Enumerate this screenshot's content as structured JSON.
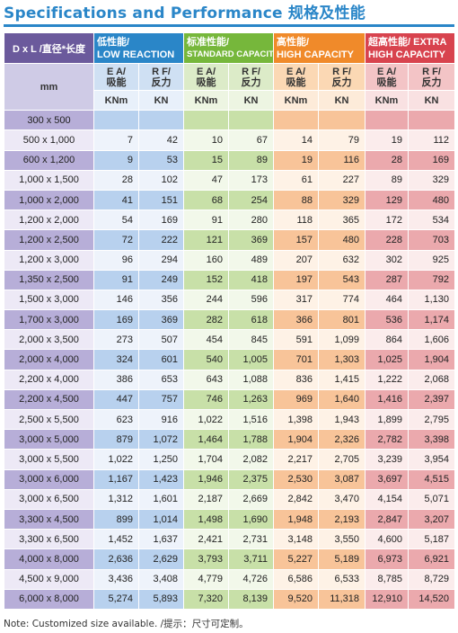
{
  "title": "Specifications and Performance 规格及性能",
  "header": {
    "dl_label": "D x L /直径*长度",
    "mm_label": "mm",
    "groups": [
      {
        "cn": "低性能/",
        "en": "LOW REACTION"
      },
      {
        "cn": "标准性能/",
        "en": "STANDARD CAPACITY"
      },
      {
        "cn": "高性能/",
        "en": "HIGH CAPACITY"
      },
      {
        "cn": "超高性能/ EXTRA",
        "en": "HIGH CAPACITY"
      }
    ],
    "ea_top": "E A/",
    "ea_bottom": "吸能",
    "rf_top": "R F/",
    "rf_bottom": "反力",
    "unit_ea": "KNm",
    "unit_rf": "KN"
  },
  "rows": [
    {
      "size": "300 x 500",
      "v": [
        "",
        "",
        "",
        "",
        "",
        "",
        "",
        ""
      ]
    },
    {
      "size": "500 x 1,000",
      "v": [
        "7",
        "42",
        "10",
        "67",
        "14",
        "79",
        "19",
        "112"
      ]
    },
    {
      "size": "600 x 1,200",
      "v": [
        "9",
        "53",
        "15",
        "89",
        "19",
        "116",
        "28",
        "169"
      ]
    },
    {
      "size": "1,000 x 1,500",
      "v": [
        "28",
        "102",
        "47",
        "173",
        "61",
        "227",
        "89",
        "329"
      ]
    },
    {
      "size": "1,000 x 2,000",
      "v": [
        "41",
        "151",
        "68",
        "254",
        "88",
        "329",
        "129",
        "480"
      ]
    },
    {
      "size": "1,200 x 2,000",
      "v": [
        "54",
        "169",
        "91",
        "280",
        "118",
        "365",
        "172",
        "534"
      ]
    },
    {
      "size": "1,200 x 2,500",
      "v": [
        "72",
        "222",
        "121",
        "369",
        "157",
        "480",
        "228",
        "703"
      ]
    },
    {
      "size": "1,200 x 3,000",
      "v": [
        "96",
        "294",
        "160",
        "489",
        "207",
        "632",
        "302",
        "925"
      ]
    },
    {
      "size": "1,350 x 2,500",
      "v": [
        "91",
        "249",
        "152",
        "418",
        "197",
        "543",
        "287",
        "792"
      ]
    },
    {
      "size": "1,500 x 3,000",
      "v": [
        "146",
        "356",
        "244",
        "596",
        "317",
        "774",
        "464",
        "1,130"
      ]
    },
    {
      "size": "1,700 x 3,000",
      "v": [
        "169",
        "369",
        "282",
        "618",
        "366",
        "801",
        "536",
        "1,174"
      ]
    },
    {
      "size": "2,000 x 3,500",
      "v": [
        "273",
        "507",
        "454",
        "845",
        "591",
        "1,099",
        "864",
        "1,606"
      ]
    },
    {
      "size": "2,000 x 4,000",
      "v": [
        "324",
        "601",
        "540",
        "1,005",
        "701",
        "1,303",
        "1,025",
        "1,904"
      ]
    },
    {
      "size": "2,200 x 4,000",
      "v": [
        "386",
        "653",
        "643",
        "1,088",
        "836",
        "1,415",
        "1,222",
        "2,068"
      ]
    },
    {
      "size": "2,200 x 4,500",
      "v": [
        "447",
        "757",
        "746",
        "1,263",
        "969",
        "1,640",
        "1,416",
        "2,397"
      ]
    },
    {
      "size": "2,500 x 5,500",
      "v": [
        "623",
        "916",
        "1,022",
        "1,516",
        "1,398",
        "1,943",
        "1,899",
        "2,795"
      ]
    },
    {
      "size": "3,000 x 5,000",
      "v": [
        "879",
        "1,072",
        "1,464",
        "1,788",
        "1,904",
        "2,326",
        "2,782",
        "3,398"
      ]
    },
    {
      "size": "3,000 x 5,500",
      "v": [
        "1,022",
        "1,250",
        "1,704",
        "2,082",
        "2,217",
        "2,705",
        "3,239",
        "3,954"
      ]
    },
    {
      "size": "3,000 x 6,000",
      "v": [
        "1,167",
        "1,423",
        "1,946",
        "2,375",
        "2,530",
        "3,087",
        "3,697",
        "4,515"
      ]
    },
    {
      "size": "3,000 x 6,500",
      "v": [
        "1,312",
        "1,601",
        "2,187",
        "2,669",
        "2,842",
        "3,470",
        "4,154",
        "5,071"
      ]
    },
    {
      "size": "3,300 x 4,500",
      "v": [
        "899",
        "1,014",
        "1,498",
        "1,690",
        "1,948",
        "2,193",
        "2,847",
        "3,207"
      ]
    },
    {
      "size": "3,300 x 6,500",
      "v": [
        "1,452",
        "1,637",
        "2,421",
        "2,731",
        "3,148",
        "3,550",
        "4,600",
        "5,187"
      ]
    },
    {
      "size": "4,000 x 8,000",
      "v": [
        "2,636",
        "2,629",
        "3,793",
        "3,711",
        "5,227",
        "5,189",
        "6,973",
        "6,921"
      ]
    },
    {
      "size": "4,500 x 9,000",
      "v": [
        "3,436",
        "3,408",
        "4,779",
        "4,726",
        "6,586",
        "6,533",
        "8,785",
        "8,729"
      ]
    },
    {
      "size": "6,000 x 8,000",
      "v": [
        "5,274",
        "5,893",
        "7,320",
        "8,139",
        "9,520",
        "11,318",
        "12,910",
        "14,520"
      ]
    }
  ],
  "note": "Note: Customized size available. /提示：尺寸可定制。"
}
